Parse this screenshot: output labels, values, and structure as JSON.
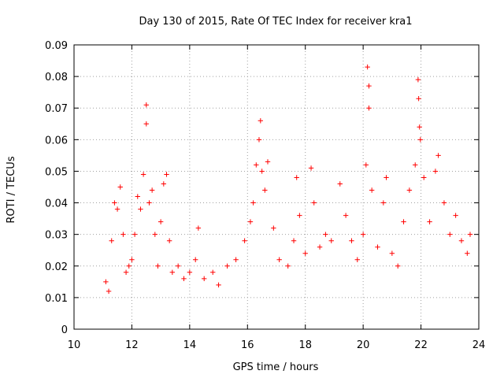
{
  "chart_data": {
    "type": "scatter",
    "title": "Day 130 of 2015, Rate Of TEC Index for receiver kra1",
    "xlabel": "GPS time / hours",
    "ylabel": "ROTI / TECUs",
    "xlim": [
      10,
      24
    ],
    "ylim": [
      0,
      0.09
    ],
    "x_ticks": [
      10,
      12,
      14,
      16,
      18,
      20,
      22,
      24
    ],
    "y_ticks": [
      0,
      0.01,
      0.02,
      0.03,
      0.04,
      0.05,
      0.06,
      0.07,
      0.08,
      0.09
    ],
    "x_tick_labels": [
      "10",
      "12",
      "14",
      "16",
      "18",
      "20",
      "22",
      "24"
    ],
    "y_tick_labels": [
      "0",
      "0.01",
      "0.02",
      "0.03",
      "0.04",
      "0.05",
      "0.06",
      "0.07",
      "0.08",
      "0.09"
    ],
    "grid": true,
    "marker": "+",
    "series_color": "#ff0000",
    "x_range_of_data": [
      11.0,
      23.8
    ],
    "series": [
      {
        "name": "ROTI",
        "points": [
          [
            11.1,
            0.015
          ],
          [
            11.2,
            0.012
          ],
          [
            11.3,
            0.028
          ],
          [
            11.4,
            0.04
          ],
          [
            11.5,
            0.038
          ],
          [
            11.6,
            0.045
          ],
          [
            11.7,
            0.03
          ],
          [
            11.8,
            0.018
          ],
          [
            11.9,
            0.02
          ],
          [
            12.0,
            0.022
          ],
          [
            12.1,
            0.03
          ],
          [
            12.2,
            0.042
          ],
          [
            12.3,
            0.038
          ],
          [
            12.4,
            0.049
          ],
          [
            12.5,
            0.071
          ],
          [
            12.5,
            0.065
          ],
          [
            12.6,
            0.04
          ],
          [
            12.7,
            0.044
          ],
          [
            12.8,
            0.03
          ],
          [
            12.9,
            0.02
          ],
          [
            13.0,
            0.034
          ],
          [
            13.1,
            0.046
          ],
          [
            13.2,
            0.049
          ],
          [
            13.3,
            0.028
          ],
          [
            13.4,
            0.018
          ],
          [
            13.6,
            0.02
          ],
          [
            13.8,
            0.016
          ],
          [
            14.0,
            0.018
          ],
          [
            14.2,
            0.022
          ],
          [
            14.3,
            0.032
          ],
          [
            14.5,
            0.016
          ],
          [
            14.8,
            0.018
          ],
          [
            15.0,
            0.014
          ],
          [
            15.3,
            0.02
          ],
          [
            15.6,
            0.022
          ],
          [
            15.9,
            0.028
          ],
          [
            16.1,
            0.034
          ],
          [
            16.2,
            0.04
          ],
          [
            16.3,
            0.052
          ],
          [
            16.4,
            0.06
          ],
          [
            16.45,
            0.066
          ],
          [
            16.5,
            0.05
          ],
          [
            16.6,
            0.044
          ],
          [
            16.7,
            0.053
          ],
          [
            16.9,
            0.032
          ],
          [
            17.1,
            0.022
          ],
          [
            17.4,
            0.02
          ],
          [
            17.6,
            0.028
          ],
          [
            17.7,
            0.048
          ],
          [
            17.8,
            0.036
          ],
          [
            18.0,
            0.024
          ],
          [
            18.2,
            0.051
          ],
          [
            18.3,
            0.04
          ],
          [
            18.5,
            0.026
          ],
          [
            18.7,
            0.03
          ],
          [
            18.9,
            0.028
          ],
          [
            19.2,
            0.046
          ],
          [
            19.4,
            0.036
          ],
          [
            19.6,
            0.028
          ],
          [
            19.8,
            0.022
          ],
          [
            20.0,
            0.03
          ],
          [
            20.1,
            0.052
          ],
          [
            20.15,
            0.083
          ],
          [
            20.2,
            0.077
          ],
          [
            20.2,
            0.07
          ],
          [
            20.3,
            0.044
          ],
          [
            20.5,
            0.026
          ],
          [
            20.7,
            0.04
          ],
          [
            20.8,
            0.048
          ],
          [
            21.0,
            0.024
          ],
          [
            21.2,
            0.02
          ],
          [
            21.4,
            0.034
          ],
          [
            21.6,
            0.044
          ],
          [
            21.8,
            0.052
          ],
          [
            21.9,
            0.079
          ],
          [
            21.92,
            0.073
          ],
          [
            21.95,
            0.064
          ],
          [
            21.98,
            0.06
          ],
          [
            22.1,
            0.048
          ],
          [
            22.3,
            0.034
          ],
          [
            22.5,
            0.05
          ],
          [
            22.6,
            0.055
          ],
          [
            22.8,
            0.04
          ],
          [
            23.0,
            0.03
          ],
          [
            23.2,
            0.036
          ],
          [
            23.4,
            0.028
          ],
          [
            23.6,
            0.024
          ],
          [
            23.7,
            0.03
          ]
        ]
      }
    ]
  }
}
